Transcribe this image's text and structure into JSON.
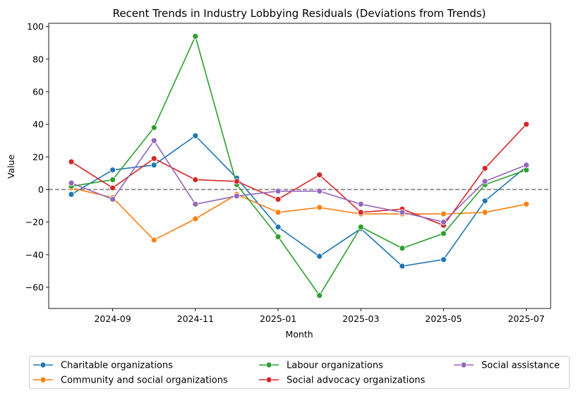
{
  "chart_data": {
    "type": "line",
    "title": "Recent Trends in Industry Lobbying Residuals (Deviations from Trends)",
    "xlabel": "Month",
    "ylabel": "Value",
    "x": [
      "2024-08",
      "2024-09",
      "2024-10",
      "2024-11",
      "2024-12",
      "2025-01",
      "2025-02",
      "2025-03",
      "2025-04",
      "2025-05",
      "2025-06",
      "2025-07"
    ],
    "x_tick_labels": [
      "2024-09",
      "2024-11",
      "2025-01",
      "2025-03",
      "2025-05",
      "2025-07"
    ],
    "y_ticks": [
      -60,
      -40,
      -20,
      0,
      20,
      40,
      60,
      80,
      100
    ],
    "ylim": [
      -73,
      102
    ],
    "grid": false,
    "reference_line": {
      "y": 0,
      "style": "dashed",
      "color": "#808080"
    },
    "legend_placement": "bottom",
    "series": [
      {
        "name": "Charitable organizations",
        "color": "#1f77b4",
        "values": [
          -3,
          12,
          15,
          33,
          7,
          -23,
          -41,
          -24,
          -47,
          -43,
          -7,
          14
        ]
      },
      {
        "name": "Community and social organizations",
        "color": "#ff7f0e",
        "values": [
          1,
          -5,
          -31,
          -18,
          -3,
          -14,
          -11,
          -15,
          -15,
          -15,
          -14,
          -9
        ]
      },
      {
        "name": "Labour organizations",
        "color": "#2ca02c",
        "values": [
          2,
          6,
          38,
          94,
          3,
          -29,
          -65,
          -23,
          -36,
          -27,
          3,
          12
        ]
      },
      {
        "name": "Social advocacy organizations",
        "color": "#d62728",
        "values": [
          17,
          1,
          19,
          6,
          5,
          -6,
          9,
          -14,
          -12,
          -22,
          13,
          40
        ]
      },
      {
        "name": "Social assistance",
        "color": "#9467bd",
        "values": [
          4,
          -6,
          30,
          -9,
          -4,
          -1,
          -1,
          -9,
          -14,
          -20,
          5,
          15
        ]
      }
    ]
  }
}
